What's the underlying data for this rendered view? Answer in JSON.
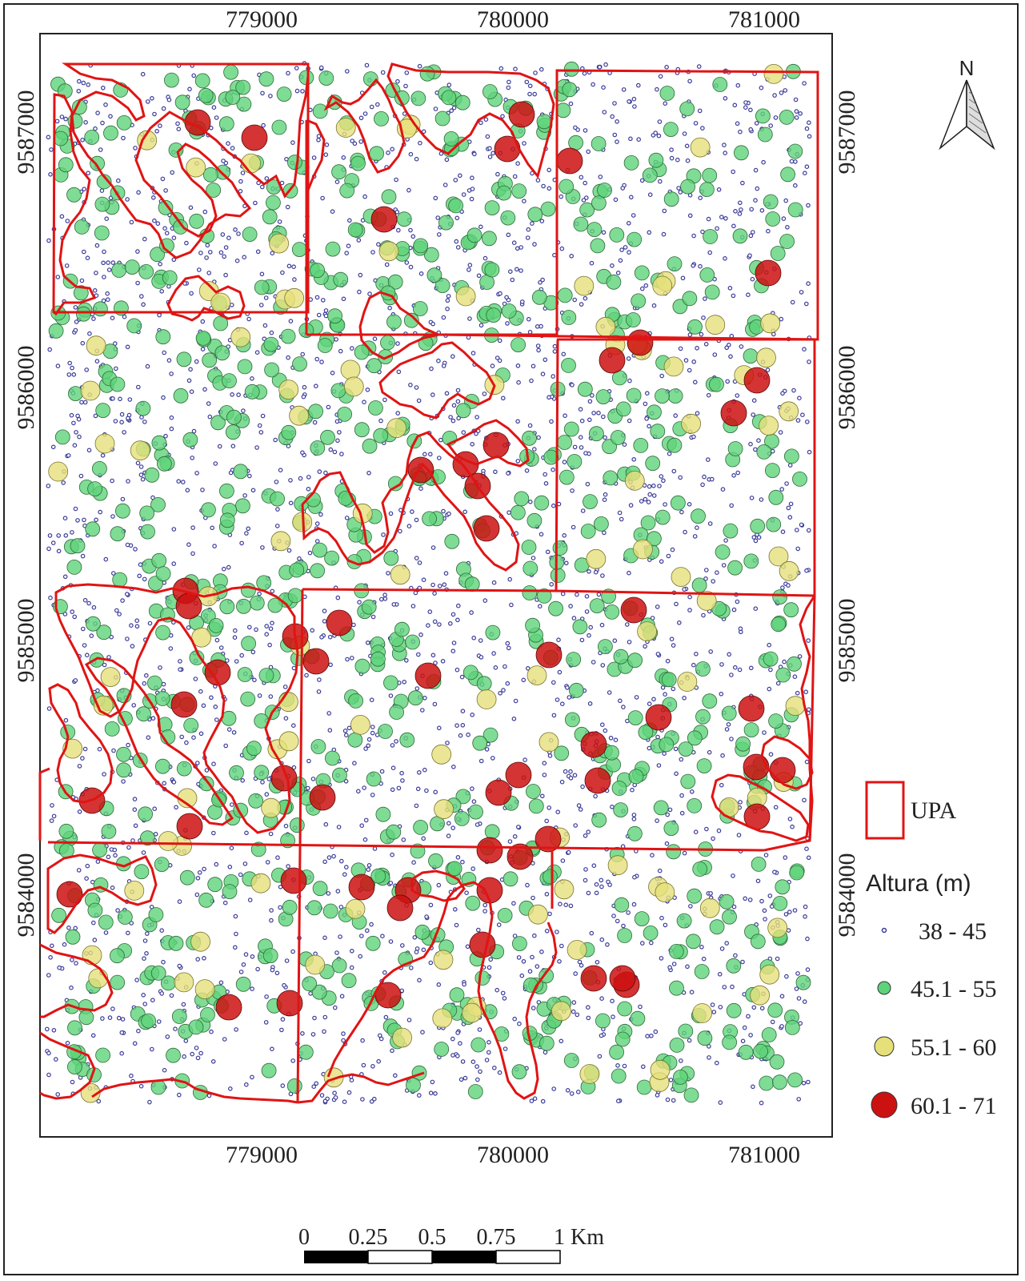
{
  "x_ticks": [
    "779000",
    "780000",
    "781000"
  ],
  "y_ticks": [
    "9587000",
    "9586000",
    "9585000",
    "9584000"
  ],
  "north_label": "N",
  "legend": {
    "upa_label": "UPA",
    "title": "Altura (m)",
    "classes": [
      {
        "label": "38 - 45",
        "color": "#3a3a9a"
      },
      {
        "label": "45.1 - 55",
        "color": "#5fd37a"
      },
      {
        "label": "55.1 - 60",
        "color": "#e6e07a"
      },
      {
        "label": "60.1 - 71",
        "color": "#cc1111"
      }
    ]
  },
  "scale_bar": {
    "labels": [
      "0",
      "0.25",
      "0.5",
      "0.75",
      "1 Km"
    ]
  },
  "colors": {
    "upa_outline": "#e01414",
    "frame": "#222222"
  }
}
